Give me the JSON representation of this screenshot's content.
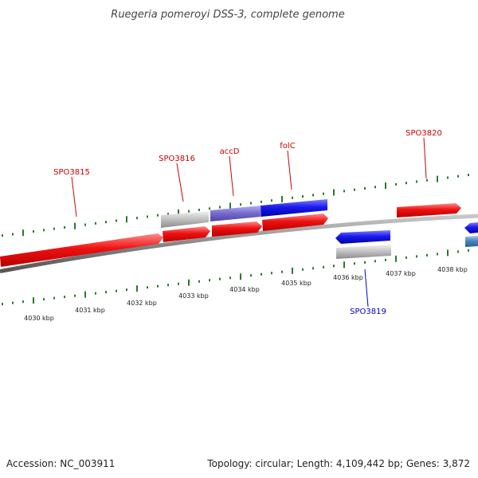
{
  "title": "Ruegeria pomeroyi DSS-3, complete genome",
  "footer": {
    "accession": "Accession: NC_003911",
    "summary": "Topology: circular; Length: 4,109,442 bp; Genes: 3,872"
  },
  "colors": {
    "forward_gene": "#ee1111",
    "reverse_gene": "#1a1aee",
    "pseudo_gene": "#bbbbbb",
    "overlap_gene": "#7a6fd0",
    "teal_gene": "#4a86c0",
    "tick_green": "#2a7a2a",
    "backbone": "#888888",
    "label_forward": "#cc0000",
    "label_reverse": "#0000cc"
  },
  "scale": {
    "ticks": [
      {
        "kbp": 4030,
        "label": "4030 kbp"
      },
      {
        "kbp": 4031,
        "label": "4031 kbp"
      },
      {
        "kbp": 4032,
        "label": "4032 kbp"
      },
      {
        "kbp": 4033,
        "label": "4033 kbp"
      },
      {
        "kbp": 4034,
        "label": "4034 kbp"
      },
      {
        "kbp": 4035,
        "label": "4035 kbp"
      },
      {
        "kbp": 4036,
        "label": "4036 kbp"
      },
      {
        "kbp": 4037,
        "label": "4037 kbp"
      },
      {
        "kbp": 4038,
        "label": "4038 kbp"
      }
    ]
  },
  "labels": [
    {
      "text": "SPO3815",
      "strand": "forward"
    },
    {
      "text": "SPO3816",
      "strand": "forward"
    },
    {
      "text": "accD",
      "strand": "forward"
    },
    {
      "text": "folC",
      "strand": "forward"
    },
    {
      "text": "SPO3820",
      "strand": "forward"
    },
    {
      "text": "SPO3819",
      "strand": "reverse"
    }
  ]
}
